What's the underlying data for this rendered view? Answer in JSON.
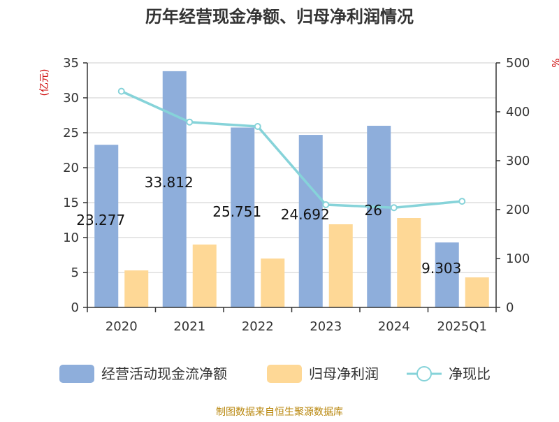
{
  "chart_data": {
    "type": "bar",
    "title": "历年经营现金净额、归母净利润情况",
    "left_axis_unit": "(亿元)",
    "right_axis_unit": "%",
    "categories": [
      "2020",
      "2021",
      "2022",
      "2023",
      "2024",
      "2025Q1"
    ],
    "ylim_left": [
      0,
      35
    ],
    "yticks_left": [
      0,
      5,
      10,
      15,
      20,
      25,
      30,
      35
    ],
    "ylim_right": [
      0,
      500
    ],
    "yticks_right": [
      0,
      100,
      200,
      300,
      400,
      500
    ],
    "grid": true,
    "legend_position": "bottom",
    "series": [
      {
        "name": "经营活动现金流净额",
        "kind": "bar",
        "axis": "left",
        "color": "#8eaedb",
        "values": [
          23.277,
          33.812,
          25.751,
          24.692,
          26,
          9.303
        ],
        "labels": [
          "23.277",
          "33.812",
          "25.751",
          "24.692",
          "26",
          "9.303"
        ]
      },
      {
        "name": "归母净利润",
        "kind": "bar",
        "axis": "left",
        "color": "#fed896",
        "values": [
          5.3,
          9.0,
          7.0,
          11.9,
          12.8,
          4.3
        ]
      },
      {
        "name": "净现比",
        "kind": "line",
        "axis": "right",
        "color": "#86d3d9",
        "values": [
          442,
          379,
          370,
          210,
          204,
          217
        ]
      }
    ],
    "source": "制图数据来自恒生聚源数据库"
  }
}
